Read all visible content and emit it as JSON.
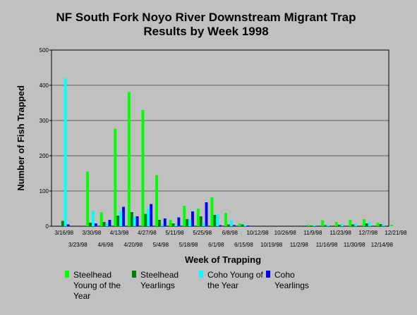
{
  "chart_data": {
    "type": "bar",
    "title": "NF South Fork Noyo River Downstream Migrant Trap",
    "subtitle": "Results by Week 1998",
    "xlabel": "Week of Trapping",
    "ylabel": "Number of Fish Trapped",
    "ylim": [
      0,
      500
    ],
    "yticks": [
      0,
      100,
      200,
      300,
      400,
      500
    ],
    "grid": true,
    "legend_position": "bottom",
    "categories": [
      "3/16/98",
      "3/23/98",
      "3/30/98",
      "4/6/98",
      "4/13/98",
      "4/20/98",
      "4/27/98",
      "5/4/98",
      "5/11/98",
      "5/18/98",
      "5/25/98",
      "6/1/98",
      "6/8/98",
      "6/15/98",
      "10/12/98",
      "10/19/98",
      "10/26/98",
      "11/2/98",
      "11/9/98",
      "11/16/98",
      "11/23/98",
      "11/30/98",
      "12/7/98",
      "12/14/98",
      "12/21/98"
    ],
    "series": [
      {
        "name": "Steelhead Young of the Year",
        "color": "#00ff00",
        "values": [
          0,
          0,
          155,
          40,
          277,
          381,
          330,
          145,
          18,
          58,
          50,
          82,
          38,
          8,
          0,
          0,
          0,
          0,
          4,
          17,
          12,
          18,
          20,
          10,
          4
        ]
      },
      {
        "name": "Steelhead Yearlings",
        "color": "#008000",
        "values": [
          15,
          0,
          10,
          12,
          30,
          40,
          35,
          18,
          8,
          20,
          28,
          32,
          5,
          5,
          0,
          0,
          0,
          0,
          2,
          3,
          4,
          5,
          8,
          6,
          0
        ]
      },
      {
        "name": "Coho Young of the Year",
        "color": "#00ffff",
        "values": [
          420,
          0,
          44,
          8,
          43,
          28,
          50,
          6,
          4,
          18,
          8,
          34,
          17,
          3,
          0,
          0,
          0,
          0,
          3,
          4,
          6,
          7,
          12,
          6,
          0
        ]
      },
      {
        "name": "Coho Yearlings",
        "color": "#0000ff",
        "values": [
          5,
          0,
          8,
          18,
          55,
          28,
          63,
          22,
          25,
          42,
          68,
          3,
          3,
          2,
          0,
          0,
          0,
          0,
          0,
          0,
          0,
          0,
          0,
          0,
          0
        ]
      }
    ]
  }
}
